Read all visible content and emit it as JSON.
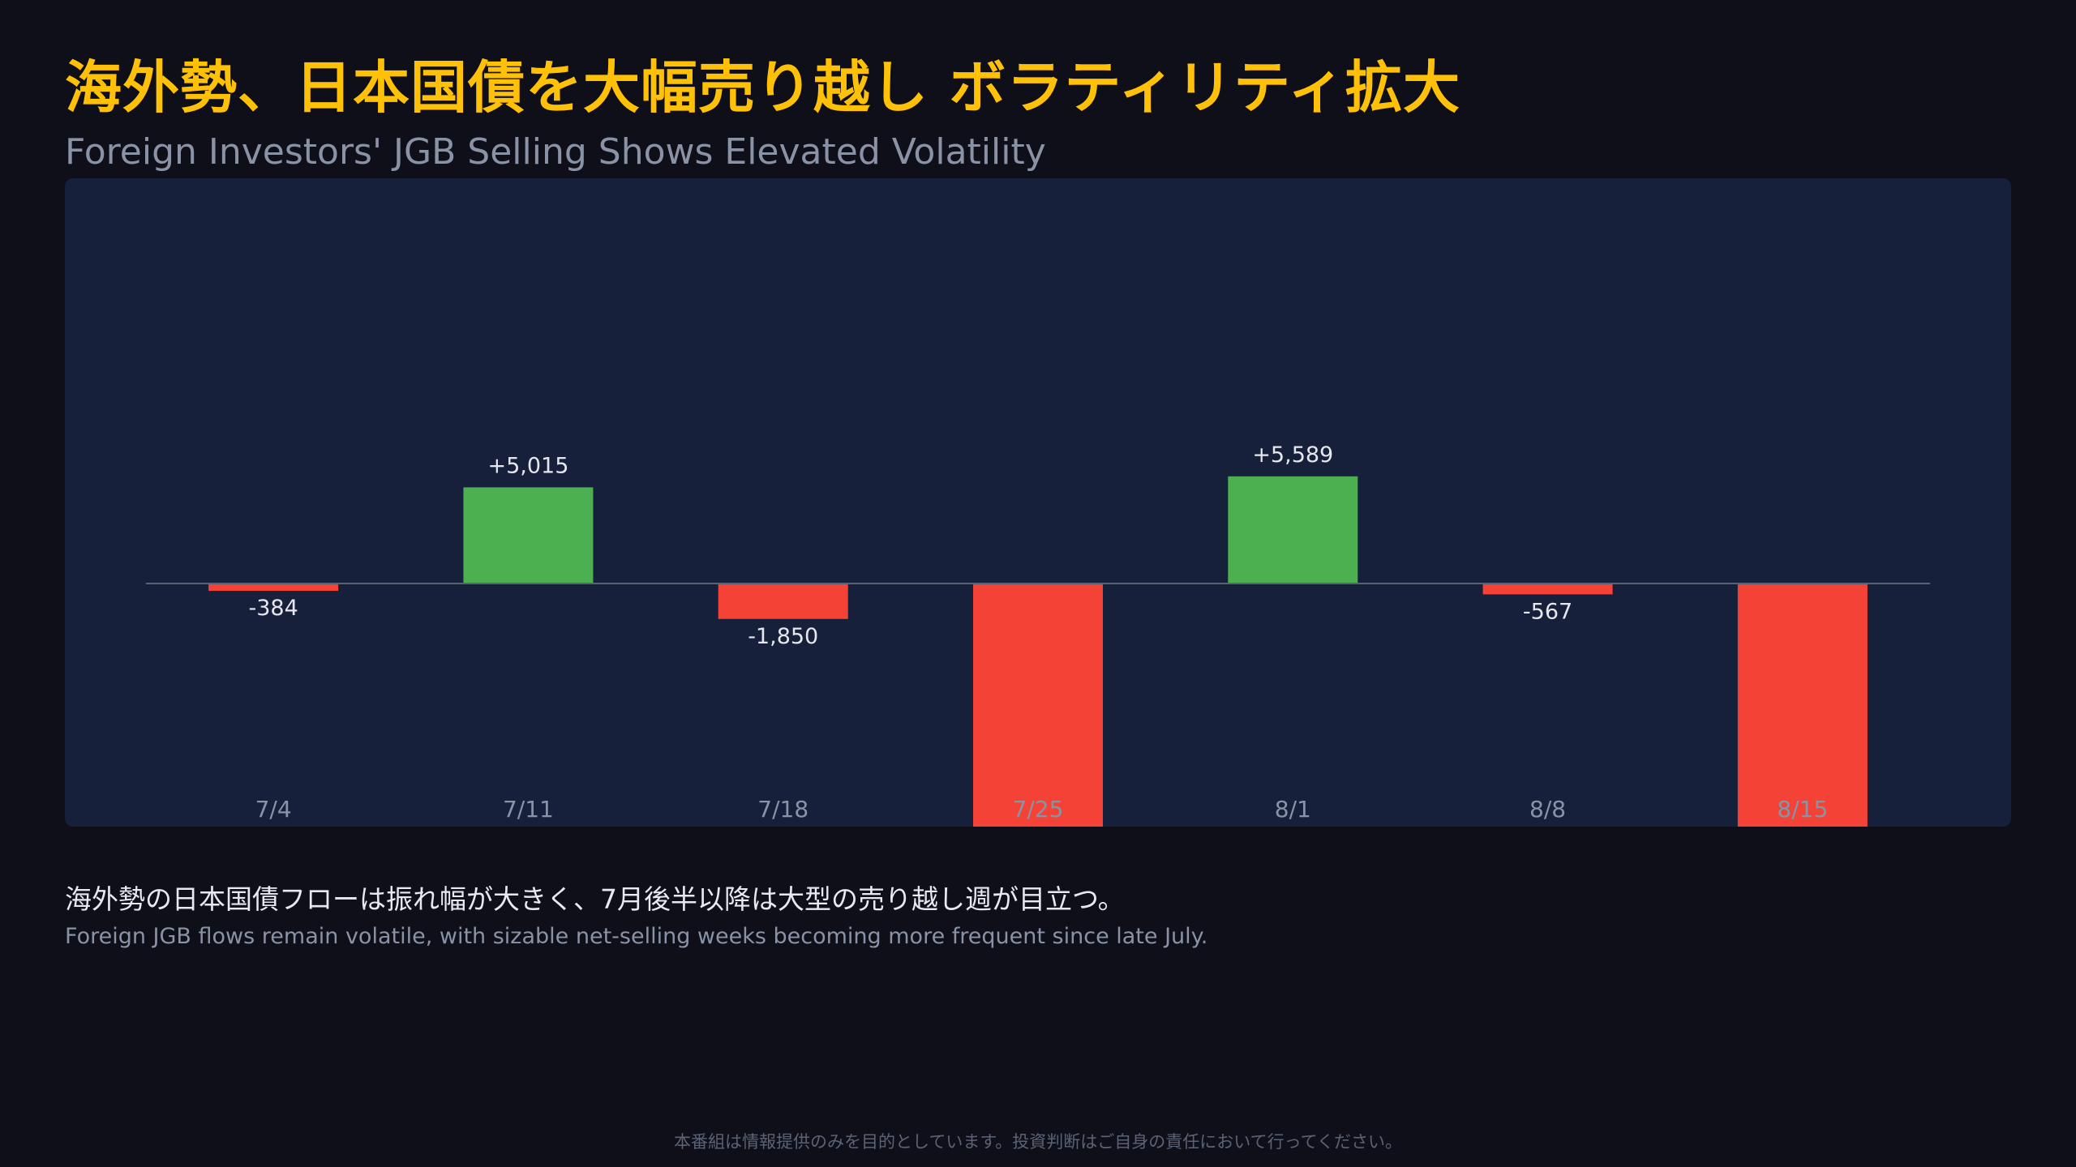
{
  "header": {
    "title": "海外勢、日本国債を大幅売り越し ボラティリティ拡大",
    "subtitle": "Foreign Investors' JGB Selling Shows Elevated Volatility"
  },
  "colors": {
    "background": "#0f0f1a",
    "panel": "#16203a",
    "title": "#ffc107",
    "positive": "#4caf50",
    "negative": "#f44336",
    "zero_line": "#5a6275",
    "tick_label": "#8a93a6",
    "value_label": "#e6e6ee"
  },
  "chart_data": {
    "type": "bar",
    "categories": [
      "7/4",
      "7/11",
      "7/18",
      "7/25",
      "8/1",
      "8/8",
      "8/15"
    ],
    "values": [
      -384,
      5015,
      -1850,
      -13000,
      5589,
      -567,
      -13000
    ],
    "value_labels": [
      "-384",
      "+5,015",
      "-1,850",
      "",
      "+5,589",
      "-567",
      ""
    ],
    "ylim": [
      -13000,
      16000
    ],
    "title": "",
    "xlabel": "",
    "ylabel": "",
    "grid": false,
    "legend": "none"
  },
  "caption": {
    "jp": "海外勢の日本国債フローは振れ幅が大きく、7月後半以降は大型の売り越し週が目立つ。",
    "en": "Foreign JGB flows remain volatile, with sizable net-selling weeks becoming more frequent since late July."
  },
  "footer": {
    "disclaimer": "本番組は情報提供のみを目的としています。投資判断はご自身の責任において行ってください。"
  }
}
